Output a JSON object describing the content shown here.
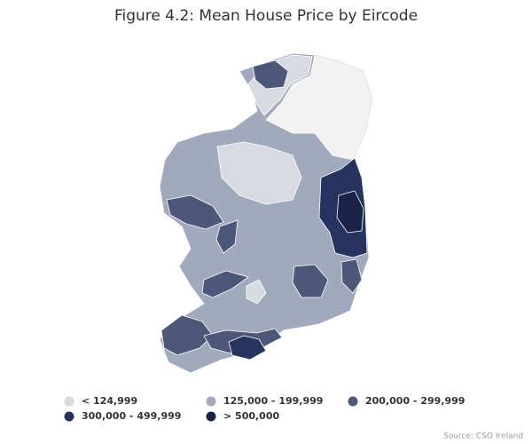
{
  "title": "Figure 4.2: Mean House Price by Eircode",
  "legend": [
    {
      "label": "< 124,999",
      "color": "#d8dae2"
    },
    {
      "label": "125,000 - 199,999",
      "color": "#a3a9bd"
    },
    {
      "label": "200,000 - 299,999",
      "color": "#4d5777"
    },
    {
      "label": "300,000 - 499,999",
      "color": "#25335e"
    },
    {
      "label": "> 500,000",
      "color": "#1a2448"
    }
  ],
  "source": "Source: CSO Ireland"
}
